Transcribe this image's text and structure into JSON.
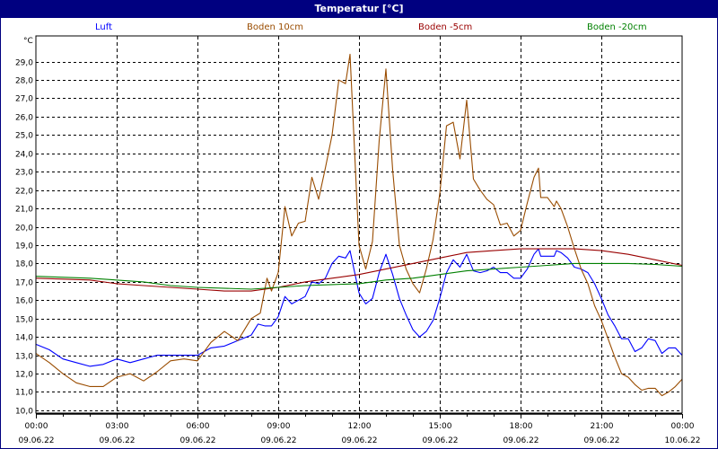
{
  "window": {
    "title": "Temperatur [°C]"
  },
  "chart_data": {
    "type": "line",
    "title": "Temperatur [°C]",
    "ylabel": "°C",
    "ylim": [
      9.85,
      30.4
    ],
    "xlim": [
      "00:00",
      "24:00"
    ],
    "grid": true,
    "legend_position": "top",
    "y_ticks": [
      "10,0",
      "11,0",
      "12,0",
      "13,0",
      "14,0",
      "15,0",
      "16,0",
      "17,0",
      "18,0",
      "19,0",
      "20,0",
      "21,0",
      "22,0",
      "23,0",
      "24,0",
      "25,0",
      "26,0",
      "27,0",
      "28,0",
      "29,0"
    ],
    "x_ticks": [
      {
        "time": "00:00",
        "date": "09.06.22"
      },
      {
        "time": "03:00",
        "date": "09.06.22"
      },
      {
        "time": "06:00",
        "date": "09.06.22"
      },
      {
        "time": "09:00",
        "date": "09.06.22"
      },
      {
        "time": "12:00",
        "date": "09.06.22"
      },
      {
        "time": "15:00",
        "date": "09.06.22"
      },
      {
        "time": "18:00",
        "date": "09.06.22"
      },
      {
        "time": "21:00",
        "date": "09.06.22"
      },
      {
        "time": "00:00",
        "date": "10.06.22"
      }
    ],
    "series": [
      {
        "name": "Luft",
        "color": "#0000ff",
        "points": [
          [
            "00:00",
            13.6
          ],
          [
            "00:30",
            13.3
          ],
          [
            "01:00",
            12.8
          ],
          [
            "01:30",
            12.6
          ],
          [
            "02:00",
            12.4
          ],
          [
            "02:30",
            12.5
          ],
          [
            "03:00",
            12.8
          ],
          [
            "03:30",
            12.6
          ],
          [
            "04:00",
            12.8
          ],
          [
            "04:30",
            13.0
          ],
          [
            "05:00",
            13.0
          ],
          [
            "05:30",
            13.0
          ],
          [
            "06:00",
            13.0
          ],
          [
            "06:30",
            13.4
          ],
          [
            "07:00",
            13.5
          ],
          [
            "07:30",
            13.8
          ],
          [
            "08:00",
            14.1
          ],
          [
            "08:15",
            14.7
          ],
          [
            "08:30",
            14.6
          ],
          [
            "08:45",
            14.6
          ],
          [
            "09:00",
            15.1
          ],
          [
            "09:15",
            16.2
          ],
          [
            "09:30",
            15.8
          ],
          [
            "09:45",
            16.0
          ],
          [
            "10:00",
            16.2
          ],
          [
            "10:15",
            17.0
          ],
          [
            "10:30",
            16.9
          ],
          [
            "10:45",
            17.2
          ],
          [
            "11:00",
            18.0
          ],
          [
            "11:15",
            18.4
          ],
          [
            "11:30",
            18.3
          ],
          [
            "11:40",
            18.7
          ],
          [
            "12:00",
            16.4
          ],
          [
            "12:15",
            15.8
          ],
          [
            "12:30",
            16.1
          ],
          [
            "12:45",
            17.5
          ],
          [
            "13:00",
            18.5
          ],
          [
            "13:15",
            17.4
          ],
          [
            "13:30",
            16.1
          ],
          [
            "13:45",
            15.2
          ],
          [
            "14:00",
            14.4
          ],
          [
            "14:15",
            14.0
          ],
          [
            "14:30",
            14.3
          ],
          [
            "14:45",
            14.9
          ],
          [
            "15:00",
            16.1
          ],
          [
            "15:15",
            17.5
          ],
          [
            "15:30",
            18.2
          ],
          [
            "15:45",
            17.8
          ],
          [
            "16:00",
            18.5
          ],
          [
            "16:15",
            17.6
          ],
          [
            "16:30",
            17.5
          ],
          [
            "16:45",
            17.6
          ],
          [
            "17:00",
            17.8
          ],
          [
            "17:15",
            17.5
          ],
          [
            "17:30",
            17.5
          ],
          [
            "17:45",
            17.2
          ],
          [
            "18:00",
            17.2
          ],
          [
            "18:15",
            17.7
          ],
          [
            "18:30",
            18.5
          ],
          [
            "18:40",
            18.8
          ],
          [
            "18:45",
            18.4
          ],
          [
            "19:00",
            18.4
          ],
          [
            "19:15",
            18.4
          ],
          [
            "19:20",
            18.7
          ],
          [
            "19:30",
            18.6
          ],
          [
            "19:45",
            18.3
          ],
          [
            "20:00",
            17.8
          ],
          [
            "20:15",
            17.7
          ],
          [
            "20:30",
            17.5
          ],
          [
            "20:45",
            16.9
          ],
          [
            "21:00",
            16.1
          ],
          [
            "21:15",
            15.2
          ],
          [
            "21:30",
            14.6
          ],
          [
            "21:45",
            13.9
          ],
          [
            "22:00",
            13.9
          ],
          [
            "22:15",
            13.2
          ],
          [
            "22:30",
            13.4
          ],
          [
            "22:45",
            13.9
          ],
          [
            "23:00",
            13.8
          ],
          [
            "23:15",
            13.1
          ],
          [
            "23:30",
            13.4
          ],
          [
            "23:45",
            13.4
          ],
          [
            "24:00",
            13.0
          ]
        ]
      },
      {
        "name": "Boden 10cm",
        "color": "#994c00",
        "points": [
          [
            "00:00",
            13.1
          ],
          [
            "00:30",
            12.6
          ],
          [
            "01:00",
            12.0
          ],
          [
            "01:30",
            11.5
          ],
          [
            "02:00",
            11.3
          ],
          [
            "02:30",
            11.3
          ],
          [
            "03:00",
            11.8
          ],
          [
            "03:30",
            12.0
          ],
          [
            "04:00",
            11.6
          ],
          [
            "04:30",
            12.1
          ],
          [
            "05:00",
            12.7
          ],
          [
            "05:30",
            12.8
          ],
          [
            "06:00",
            12.7
          ],
          [
            "06:30",
            13.7
          ],
          [
            "07:00",
            14.3
          ],
          [
            "07:30",
            13.8
          ],
          [
            "08:00",
            15.0
          ],
          [
            "08:20",
            15.3
          ],
          [
            "08:35",
            17.2
          ],
          [
            "08:45",
            16.5
          ],
          [
            "09:00",
            17.5
          ],
          [
            "09:15",
            21.1
          ],
          [
            "09:30",
            19.5
          ],
          [
            "09:45",
            20.2
          ],
          [
            "10:00",
            20.3
          ],
          [
            "10:15",
            22.7
          ],
          [
            "10:30",
            21.5
          ],
          [
            "10:45",
            23.2
          ],
          [
            "11:00",
            25.0
          ],
          [
            "11:15",
            28.0
          ],
          [
            "11:30",
            27.8
          ],
          [
            "11:40",
            29.4
          ],
          [
            "12:00",
            19.0
          ],
          [
            "12:15",
            17.7
          ],
          [
            "12:30",
            19.2
          ],
          [
            "12:45",
            24.7
          ],
          [
            "13:00",
            28.6
          ],
          [
            "13:15",
            23.1
          ],
          [
            "13:30",
            19.0
          ],
          [
            "13:45",
            17.7
          ],
          [
            "14:00",
            16.9
          ],
          [
            "14:15",
            16.4
          ],
          [
            "14:30",
            17.7
          ],
          [
            "14:45",
            19.3
          ],
          [
            "15:00",
            21.8
          ],
          [
            "15:15",
            25.5
          ],
          [
            "15:30",
            25.7
          ],
          [
            "15:45",
            23.7
          ],
          [
            "16:00",
            26.9
          ],
          [
            "16:15",
            22.6
          ],
          [
            "16:30",
            22.0
          ],
          [
            "16:45",
            21.5
          ],
          [
            "17:00",
            21.2
          ],
          [
            "17:15",
            20.1
          ],
          [
            "17:30",
            20.2
          ],
          [
            "17:45",
            19.5
          ],
          [
            "18:00",
            19.8
          ],
          [
            "18:15",
            21.3
          ],
          [
            "18:30",
            22.7
          ],
          [
            "18:40",
            23.2
          ],
          [
            "18:45",
            21.6
          ],
          [
            "19:00",
            21.6
          ],
          [
            "19:15",
            21.1
          ],
          [
            "19:20",
            21.4
          ],
          [
            "19:30",
            21.0
          ],
          [
            "19:45",
            20.0
          ],
          [
            "20:00",
            18.8
          ],
          [
            "20:15",
            17.7
          ],
          [
            "20:30",
            16.9
          ],
          [
            "20:45",
            15.7
          ],
          [
            "21:00",
            14.9
          ],
          [
            "21:15",
            13.9
          ],
          [
            "21:30",
            12.9
          ],
          [
            "21:45",
            12.0
          ],
          [
            "22:00",
            11.8
          ],
          [
            "22:15",
            11.4
          ],
          [
            "22:30",
            11.1
          ],
          [
            "22:45",
            11.2
          ],
          [
            "23:00",
            11.2
          ],
          [
            "23:15",
            10.8
          ],
          [
            "23:30",
            11.0
          ],
          [
            "23:45",
            11.3
          ],
          [
            "24:00",
            11.7
          ]
        ]
      },
      {
        "name": "Boden -5cm",
        "color": "#990000",
        "points": [
          [
            "00:00",
            17.2
          ],
          [
            "02:00",
            17.1
          ],
          [
            "03:00",
            16.9
          ],
          [
            "04:00",
            16.8
          ],
          [
            "05:00",
            16.7
          ],
          [
            "06:00",
            16.6
          ],
          [
            "07:00",
            16.5
          ],
          [
            "08:00",
            16.5
          ],
          [
            "09:00",
            16.7
          ],
          [
            "10:00",
            17.0
          ],
          [
            "11:00",
            17.2
          ],
          [
            "12:00",
            17.4
          ],
          [
            "13:00",
            17.7
          ],
          [
            "14:00",
            18.0
          ],
          [
            "15:00",
            18.3
          ],
          [
            "16:00",
            18.6
          ],
          [
            "17:00",
            18.7
          ],
          [
            "18:00",
            18.8
          ],
          [
            "19:00",
            18.8
          ],
          [
            "20:00",
            18.8
          ],
          [
            "21:00",
            18.7
          ],
          [
            "22:00",
            18.5
          ],
          [
            "23:00",
            18.2
          ],
          [
            "24:00",
            17.9
          ]
        ]
      },
      {
        "name": "Boden -20cm",
        "color": "#008000",
        "points": [
          [
            "00:00",
            17.3
          ],
          [
            "02:00",
            17.2
          ],
          [
            "04:00",
            17.0
          ],
          [
            "05:00",
            16.8
          ],
          [
            "06:00",
            16.7
          ],
          [
            "08:00",
            16.6
          ],
          [
            "09:00",
            16.7
          ],
          [
            "10:00",
            16.8
          ],
          [
            "11:00",
            16.85
          ],
          [
            "12:00",
            16.9
          ],
          [
            "13:00",
            17.1
          ],
          [
            "14:00",
            17.2
          ],
          [
            "15:00",
            17.4
          ],
          [
            "16:00",
            17.6
          ],
          [
            "17:00",
            17.7
          ],
          [
            "18:00",
            17.8
          ],
          [
            "19:00",
            17.9
          ],
          [
            "20:00",
            18.0
          ],
          [
            "21:00",
            18.0
          ],
          [
            "22:00",
            18.0
          ],
          [
            "23:00",
            17.95
          ],
          [
            "24:00",
            17.85
          ]
        ]
      }
    ]
  }
}
